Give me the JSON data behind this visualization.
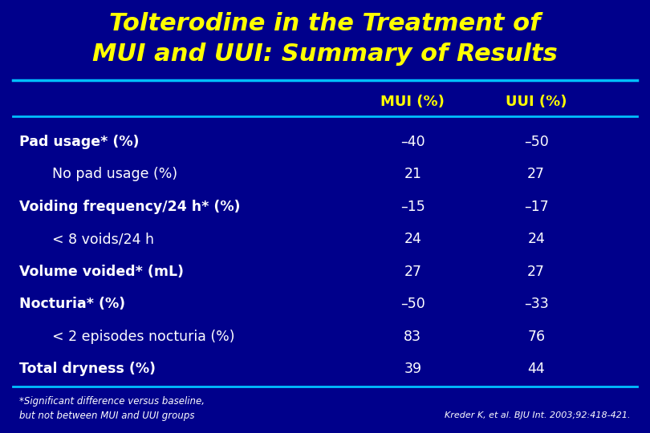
{
  "title_line1": "Tolterodine in the Treatment of",
  "title_line2": "MUI and UUI: Summary of Results",
  "title_color": "#FFFF00",
  "bg_color": "#00008B",
  "table_text_color": "#FFFFFF",
  "header_color": "#FFFF00",
  "col_headers": [
    "MUI (%)",
    "UUI (%)"
  ],
  "rows": [
    {
      "label": "Pad usage* (%)",
      "mui": "–40",
      "uui": "–50",
      "indent": false,
      "bold": true
    },
    {
      "label": "No pad usage (%)",
      "mui": "21",
      "uui": "27",
      "indent": true,
      "bold": false
    },
    {
      "label": "Voiding frequency/24 h* (%)",
      "mui": "–15",
      "uui": "–17",
      "indent": false,
      "bold": true
    },
    {
      "label": "< 8 voids/24 h",
      "mui": "24",
      "uui": "24",
      "indent": true,
      "bold": false
    },
    {
      "label": "Volume voided* (mL)",
      "mui": "27",
      "uui": "27",
      "indent": false,
      "bold": true
    },
    {
      "label": "Nocturia* (%)",
      "mui": "–50",
      "uui": "–33",
      "indent": false,
      "bold": true
    },
    {
      "label": "< 2 episodes nocturia (%)",
      "mui": "83",
      "uui": "76",
      "indent": true,
      "bold": false
    },
    {
      "label": "Total dryness (%)",
      "mui": "39",
      "uui": "44",
      "indent": false,
      "bold": true
    }
  ],
  "footnote1": "*Significant difference versus baseline,",
  "footnote2": "but not between MUI and UUI groups",
  "citation": "Kreder K, et al. BJU Int. 2003;92:418-421.",
  "separator_color": "#00BFFF",
  "header_line_color": "#00BFFF"
}
